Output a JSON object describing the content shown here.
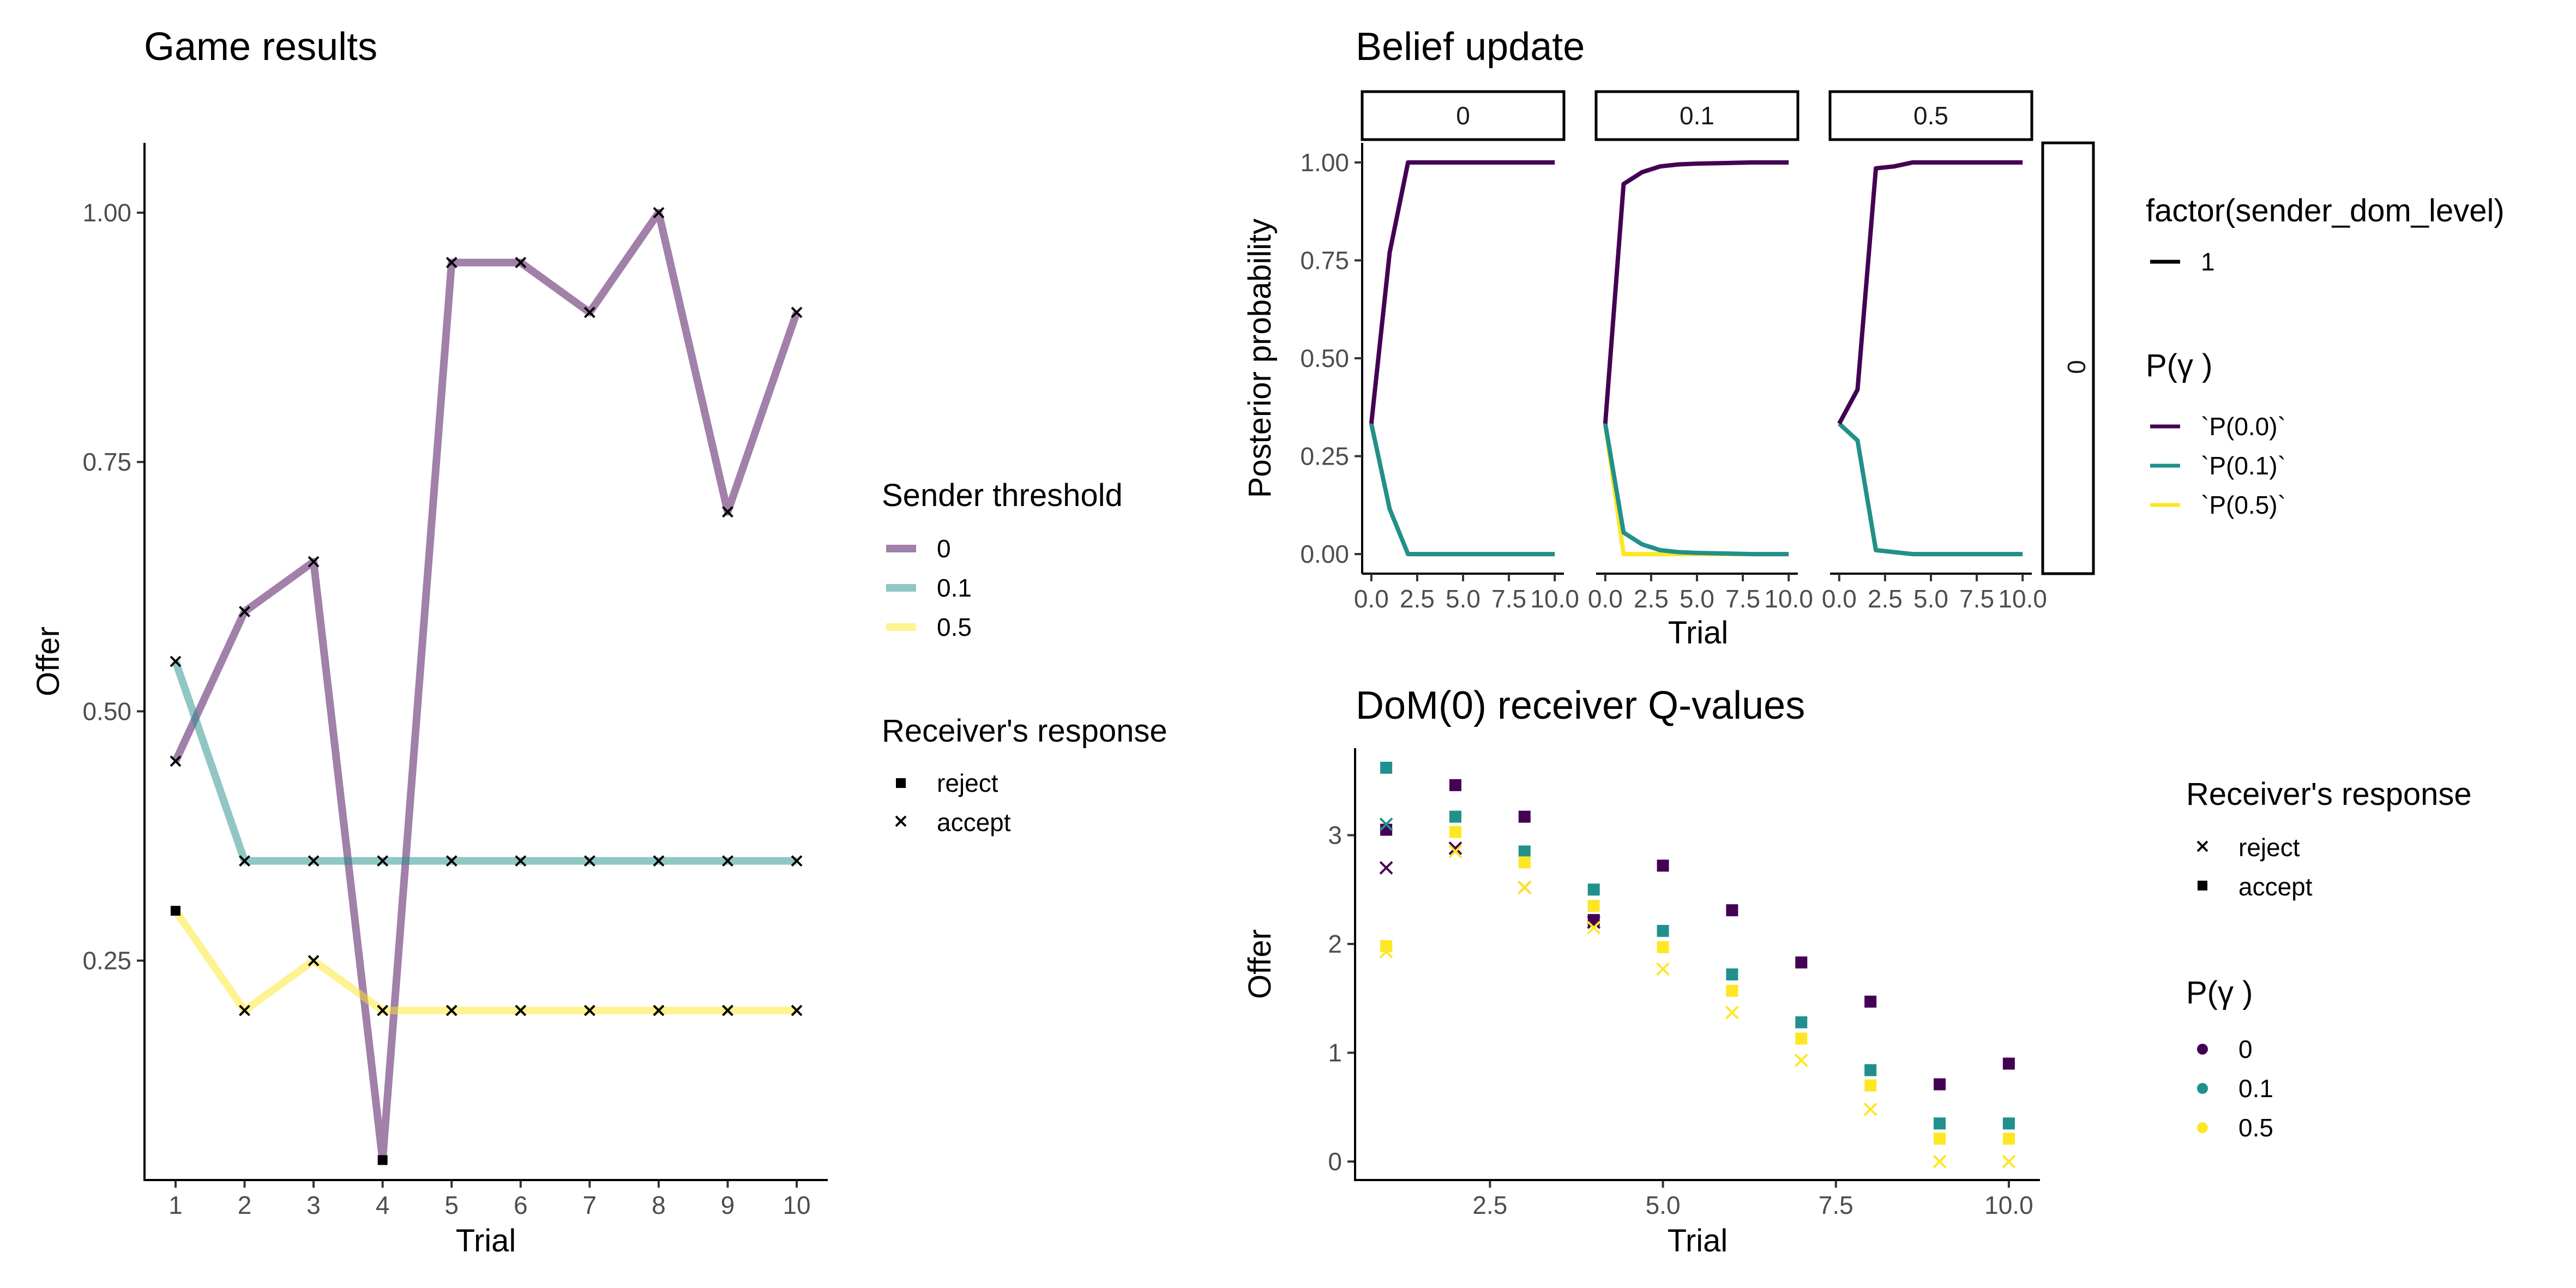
{
  "colors": {
    "p00": "#440154",
    "p01": "#21908C",
    "p05": "#FDE725"
  },
  "chart_data": [
    {
      "type": "line",
      "title": "Game results",
      "xlabel": "Trial",
      "ylabel": "Offer",
      "xlim": [
        0.55,
        10.45
      ],
      "ylim": [
        0.03,
        1.07
      ],
      "x_ticks": [
        1,
        2,
        3,
        4,
        5,
        6,
        7,
        8,
        9,
        10
      ],
      "x_tick_labels": [
        "1",
        "2",
        "3",
        "4",
        "5",
        "6",
        "7",
        "8",
        "9",
        "10"
      ],
      "y_ticks": [
        0.25,
        0.5,
        0.75,
        1.0
      ],
      "y_tick_labels": [
        "0.25",
        "0.50",
        "0.75",
        "1.00"
      ],
      "x": [
        1,
        2,
        3,
        4,
        5,
        6,
        7,
        8,
        9,
        10
      ],
      "series": [
        {
          "name": "0",
          "color": "#440154",
          "values": [
            0.45,
            0.6,
            0.65,
            0.05,
            0.95,
            0.95,
            0.9,
            1.0,
            0.7,
            0.9
          ],
          "responses": [
            "accept",
            "accept",
            "accept",
            "reject",
            "accept",
            "accept",
            "accept",
            "accept",
            "accept",
            "accept"
          ]
        },
        {
          "name": "0.1",
          "color": "#21908C",
          "values": [
            0.55,
            0.35,
            0.35,
            0.35,
            0.35,
            0.35,
            0.35,
            0.35,
            0.35,
            0.35
          ],
          "responses": [
            "accept",
            "accept",
            "accept",
            "accept",
            "accept",
            "accept",
            "accept",
            "accept",
            "accept",
            "accept"
          ]
        },
        {
          "name": "0.5",
          "color": "#FDE725",
          "values": [
            0.3,
            0.2,
            0.25,
            0.2,
            0.2,
            0.2,
            0.2,
            0.2,
            0.2,
            0.2
          ],
          "responses": [
            "reject",
            "accept",
            "accept",
            "accept",
            "accept",
            "accept",
            "accept",
            "accept",
            "accept",
            "accept"
          ]
        }
      ],
      "legend_placement": "right",
      "legend_color_title": "Sender threshold",
      "legend_color_items": [
        "0",
        "0.1",
        "0.5"
      ],
      "legend_shape_title": "Receiver's response",
      "legend_shape_items": [
        "reject",
        "accept"
      ],
      "grid": false
    },
    {
      "type": "line",
      "title": "Belief update",
      "xlabel": "Trial",
      "ylabel": "Posterior probability",
      "xlim": [
        -0.5,
        10.5
      ],
      "ylim": [
        -0.05,
        1.05
      ],
      "x_ticks": [
        0,
        2.5,
        5,
        7.5,
        10
      ],
      "x_tick_labels": [
        "0.0",
        "2.5",
        "5.0",
        "7.5",
        "10.0"
      ],
      "y_ticks": [
        0,
        0.25,
        0.5,
        0.75,
        1.0
      ],
      "y_tick_labels": [
        "0.00",
        "0.25",
        "0.50",
        "0.75",
        "1.00"
      ],
      "row_strip": "0",
      "x": [
        0,
        1,
        2,
        3,
        4,
        5,
        6,
        7,
        8,
        9,
        10
      ],
      "facets": [
        {
          "strip": "0",
          "series": [
            {
              "name": "`P(0.0)`",
              "color": "#440154",
              "values": [
                0.333,
                0.77,
                1.0,
                1.0,
                1.0,
                1.0,
                1.0,
                1.0,
                1.0,
                1.0,
                1.0
              ]
            },
            {
              "name": "`P(0.1)`",
              "color": "#21908C",
              "values": [
                0.333,
                0.115,
                0.0,
                0.0,
                0.0,
                0.0,
                0.0,
                0.0,
                0.0,
                0.0,
                0.0
              ]
            },
            {
              "name": "`P(0.5)`",
              "color": "#FDE725",
              "values": [
                0.333,
                0.115,
                0.0,
                0.0,
                0.0,
                0.0,
                0.0,
                0.0,
                0.0,
                0.0,
                0.0
              ]
            }
          ]
        },
        {
          "strip": "0.1",
          "series": [
            {
              "name": "`P(0.0)`",
              "color": "#440154",
              "values": [
                0.333,
                0.945,
                0.975,
                0.99,
                0.995,
                0.997,
                0.998,
                0.999,
                1.0,
                1.0,
                1.0
              ]
            },
            {
              "name": "`P(0.1)`",
              "color": "#21908C",
              "values": [
                0.333,
                0.055,
                0.025,
                0.01,
                0.005,
                0.003,
                0.002,
                0.001,
                0.0,
                0.0,
                0.0
              ]
            },
            {
              "name": "`P(0.5)`",
              "color": "#FDE725",
              "values": [
                0.333,
                0.0,
                0.0,
                0.0,
                0.0,
                0.0,
                0.0,
                0.0,
                0.0,
                0.0,
                0.0
              ]
            }
          ]
        },
        {
          "strip": "0.5",
          "series": [
            {
              "name": "`P(0.0)`",
              "color": "#440154",
              "values": [
                0.333,
                0.42,
                0.985,
                0.99,
                1.0,
                1.0,
                1.0,
                1.0,
                1.0,
                1.0,
                1.0
              ]
            },
            {
              "name": "`P(0.1)`",
              "color": "#21908C",
              "values": [
                0.333,
                0.29,
                0.01,
                0.005,
                0.0,
                0.0,
                0.0,
                0.0,
                0.0,
                0.0,
                0.0
              ]
            },
            {
              "name": "`P(0.5)`",
              "color": "#FDE725",
              "values": [
                0.333,
                0.29,
                0.01,
                0.005,
                0.0,
                0.0,
                0.0,
                0.0,
                0.0,
                0.0,
                0.0
              ]
            }
          ]
        }
      ],
      "legend_placement": "right",
      "legend_linetype_title": "factor(sender_dom_level)",
      "legend_linetype_items": [
        "1"
      ],
      "legend_color_title": "P(γ )",
      "legend_color_items": [
        "`P(0.0)`",
        "`P(0.1)`",
        "`P(0.5)`"
      ],
      "grid": false
    },
    {
      "type": "scatter",
      "title": "DoM(0) receiver Q-values",
      "xlabel": "Trial",
      "ylabel": "Offer",
      "xlim": [
        0.55,
        10.45
      ],
      "ylim": [
        -0.17,
        3.8
      ],
      "x_ticks": [
        2.5,
        5,
        7.5,
        10
      ],
      "x_tick_labels": [
        "2.5",
        "5.0",
        "7.5",
        "10.0"
      ],
      "y_ticks": [
        0,
        1,
        2,
        3
      ],
      "y_tick_labels": [
        "0",
        "1",
        "2",
        "3"
      ],
      "x": [
        1,
        2,
        3,
        4,
        5,
        6,
        7,
        8,
        9,
        10
      ],
      "series": [
        {
          "name": "0",
          "color": "#440154",
          "accept": [
            3.05,
            3.46,
            3.17,
            2.22,
            2.72,
            2.31,
            1.83,
            1.47,
            0.71,
            0.9
          ],
          "reject": [
            2.7,
            2.88,
            2.52,
            2.2,
            null,
            null,
            null,
            null,
            null,
            null
          ]
        },
        {
          "name": "0.1",
          "color": "#21908C",
          "accept": [
            3.62,
            3.17,
            2.85,
            2.5,
            2.12,
            1.72,
            1.28,
            0.84,
            0.35,
            0.35
          ],
          "reject": [
            3.1,
            null,
            null,
            null,
            null,
            null,
            null,
            null,
            null,
            null
          ]
        },
        {
          "name": "0.5",
          "color": "#FDE725",
          "accept": [
            1.98,
            3.03,
            2.75,
            2.35,
            1.97,
            1.57,
            1.13,
            0.7,
            0.21,
            0.21
          ],
          "reject": [
            1.93,
            2.85,
            2.52,
            2.15,
            1.77,
            1.37,
            0.93,
            0.48,
            0.0,
            0.0
          ]
        }
      ],
      "legend_placement": "right",
      "legend_shape_title": "Receiver's response",
      "legend_shape_items": [
        "reject",
        "accept"
      ],
      "legend_color_title": "P(γ )",
      "legend_color_items": [
        "0",
        "0.1",
        "0.5"
      ],
      "grid": false
    }
  ]
}
